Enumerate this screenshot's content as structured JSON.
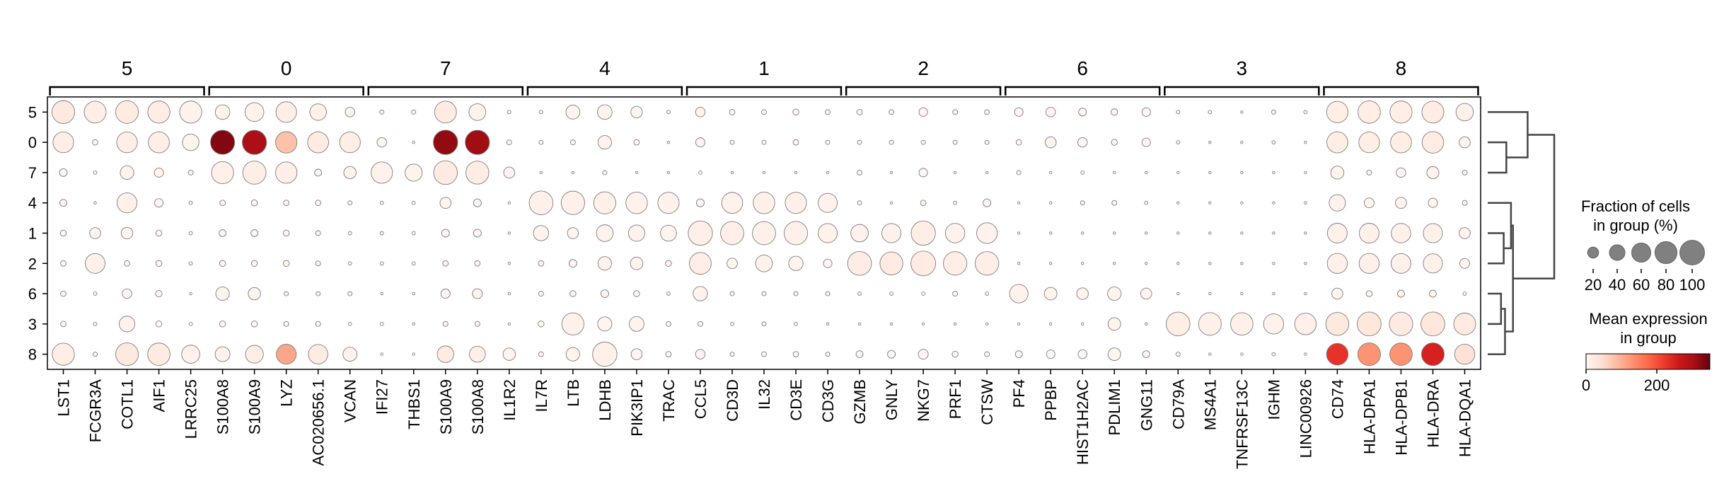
{
  "chart_data": {
    "type": "dotplot",
    "groups_order": [
      "5",
      "0",
      "7",
      "4",
      "1",
      "2",
      "6",
      "3",
      "8"
    ],
    "gene_groups": [
      {
        "label": "5",
        "genes": [
          "LST1",
          "FCGR3A",
          "COTL1",
          "AIF1",
          "LRRC25"
        ]
      },
      {
        "label": "0",
        "genes": [
          "S100A8",
          "S100A9",
          "LYZ",
          "AC020656.1",
          "VCAN"
        ]
      },
      {
        "label": "7",
        "genes": [
          "IFI27",
          "THBS1",
          "S100A9",
          "S100A8",
          "IL1R2"
        ]
      },
      {
        "label": "4",
        "genes": [
          "IL7R",
          "LTB",
          "LDHB",
          "PIK3IP1",
          "TRAC"
        ]
      },
      {
        "label": "1",
        "genes": [
          "CCL5",
          "CD3D",
          "IL32",
          "CD3E",
          "CD3G"
        ]
      },
      {
        "label": "2",
        "genes": [
          "GZMB",
          "GNLY",
          "NKG7",
          "PRF1",
          "CTSW"
        ]
      },
      {
        "label": "6",
        "genes": [
          "PF4",
          "PPBP",
          "HIST1H2AC",
          "PDLIM1",
          "GNG11"
        ]
      },
      {
        "label": "3",
        "genes": [
          "CD79A",
          "MS4A1",
          "TNFRSF13C",
          "IGHM",
          "LINC00926"
        ]
      },
      {
        "label": "8",
        "genes": [
          "CD74",
          "HLA-DPA1",
          "HLA-DPB1",
          "HLA-DRA",
          "HLA-DQA1"
        ]
      }
    ],
    "fraction": [
      [
        85,
        78,
        84,
        80,
        80,
        35,
        58,
        70,
        45,
        15,
        3,
        3,
        78,
        46,
        2,
        2,
        32,
        35,
        22,
        2,
        15,
        5,
        4,
        6,
        4,
        5,
        4,
        12,
        4,
        4,
        12,
        15,
        10,
        7,
        12,
        2,
        2,
        1,
        3,
        2,
        75,
        82,
        80,
        78,
        50
      ],
      [
        70,
        5,
        70,
        72,
        45,
        95,
        96,
        75,
        72,
        70,
        15,
        1,
        97,
        96,
        4,
        3,
        4,
        30,
        5,
        1,
        14,
        3,
        3,
        5,
        3,
        3,
        3,
        3,
        3,
        3,
        5,
        20,
        15,
        6,
        12,
        2,
        1,
        1,
        2,
        1,
        72,
        70,
        72,
        76,
        20
      ],
      [
        10,
        2,
        30,
        14,
        4,
        80,
        88,
        75,
        8,
        25,
        75,
        48,
        92,
        86,
        20,
        1,
        1,
        3,
        1,
        1,
        2,
        1,
        1,
        1,
        1,
        4,
        1,
        12,
        1,
        1,
        3,
        1,
        2,
        1,
        1,
        1,
        1,
        1,
        1,
        1,
        28,
        4,
        15,
        24,
        4
      ],
      [
        8,
        1,
        65,
        12,
        2,
        5,
        6,
        5,
        5,
        3,
        2,
        2,
        20,
        10,
        1,
        92,
        90,
        80,
        76,
        74,
        10,
        72,
        76,
        74,
        60,
        3,
        1,
        5,
        2,
        10,
        1,
        1,
        3,
        4,
        2,
        1,
        1,
        1,
        1,
        1,
        44,
        16,
        20,
        14,
        4
      ],
      [
        6,
        20,
        22,
        6,
        2,
        8,
        8,
        6,
        4,
        2,
        2,
        2,
        10,
        10,
        1,
        38,
        20,
        46,
        44,
        42,
        96,
        88,
        88,
        90,
        60,
        50,
        60,
        96,
        62,
        70,
        1,
        1,
        1,
        1,
        1,
        1,
        1,
        1,
        1,
        1,
        64,
        64,
        62,
        60,
        20
      ],
      [
        5,
        64,
        5,
        6,
        2,
        6,
        6,
        6,
        4,
        2,
        2,
        2,
        5,
        5,
        1,
        5,
        10,
        30,
        26,
        6,
        78,
        18,
        46,
        34,
        12,
        93,
        86,
        100,
        90,
        91,
        1,
        1,
        1,
        1,
        1,
        1,
        1,
        1,
        1,
        1,
        66,
        66,
        64,
        60,
        16
      ],
      [
        5,
        2,
        15,
        7,
        1,
        30,
        25,
        3,
        3,
        3,
        1,
        1,
        14,
        16,
        1,
        4,
        6,
        10,
        6,
        2,
        34,
        3,
        3,
        3,
        3,
        2,
        2,
        2,
        4,
        2,
        56,
        26,
        22,
        30,
        20,
        1,
        1,
        1,
        1,
        1,
        20,
        6,
        8,
        8,
        2
      ],
      [
        5,
        2,
        40,
        6,
        2,
        6,
        6,
        4,
        4,
        2,
        2,
        1,
        4,
        4,
        1,
        6,
        80,
        33,
        36,
        4,
        4,
        2,
        3,
        2,
        1,
        1,
        1,
        1,
        1,
        1,
        1,
        1,
        1,
        26,
        1,
        92,
        84,
        82,
        66,
        76,
        86,
        93,
        90,
        93,
        78
      ],
      [
        80,
        3,
        84,
        82,
        54,
        36,
        52,
        65,
        62,
        32,
        1,
        1,
        45,
        42,
        25,
        4,
        30,
        97,
        20,
        5,
        15,
        3,
        4,
        5,
        3,
        8,
        10,
        16,
        6,
        4,
        8,
        12,
        13,
        26,
        8,
        3,
        1,
        1,
        2,
        1,
        76,
        84,
        82,
        84,
        66
      ]
    ],
    "mean_expression": [
      [
        25,
        15,
        20,
        18,
        8,
        5,
        8,
        15,
        10,
        3,
        1,
        1,
        20,
        8,
        1,
        1,
        5,
        5,
        3,
        1,
        2,
        1,
        1,
        1,
        1,
        1,
        1,
        2,
        1,
        1,
        2,
        2,
        1,
        1,
        2,
        1,
        1,
        1,
        1,
        1,
        15,
        15,
        15,
        18,
        10
      ],
      [
        15,
        1,
        15,
        15,
        5,
        330,
        300,
        80,
        20,
        15,
        2,
        1,
        320,
        310,
        1,
        1,
        1,
        5,
        1,
        1,
        2,
        1,
        1,
        1,
        1,
        1,
        1,
        1,
        1,
        1,
        1,
        3,
        2,
        1,
        2,
        1,
        1,
        1,
        1,
        1,
        15,
        15,
        15,
        18,
        5
      ],
      [
        2,
        1,
        5,
        2,
        1,
        10,
        15,
        12,
        1,
        5,
        8,
        5,
        20,
        18,
        3,
        1,
        1,
        1,
        1,
        1,
        1,
        1,
        1,
        1,
        1,
        1,
        1,
        2,
        1,
        1,
        1,
        1,
        1,
        1,
        1,
        1,
        1,
        1,
        1,
        1,
        5,
        1,
        2,
        5,
        1
      ],
      [
        1,
        1,
        10,
        2,
        1,
        1,
        1,
        1,
        1,
        1,
        1,
        1,
        3,
        2,
        1,
        10,
        10,
        10,
        8,
        6,
        2,
        8,
        10,
        10,
        6,
        1,
        1,
        1,
        1,
        2,
        1,
        1,
        1,
        1,
        1,
        1,
        1,
        1,
        1,
        1,
        8,
        3,
        3,
        3,
        1
      ],
      [
        1,
        2,
        3,
        1,
        1,
        1,
        1,
        1,
        1,
        1,
        1,
        1,
        2,
        2,
        1,
        4,
        3,
        5,
        6,
        5,
        12,
        12,
        10,
        10,
        7,
        6,
        8,
        14,
        8,
        8,
        1,
        1,
        1,
        1,
        1,
        1,
        1,
        1,
        1,
        1,
        10,
        10,
        10,
        10,
        3
      ],
      [
        1,
        10,
        1,
        1,
        1,
        1,
        1,
        1,
        1,
        1,
        1,
        1,
        1,
        1,
        1,
        1,
        1,
        4,
        3,
        1,
        15,
        3,
        6,
        4,
        2,
        18,
        20,
        20,
        14,
        14,
        1,
        1,
        1,
        1,
        1,
        1,
        1,
        1,
        1,
        1,
        10,
        10,
        10,
        10,
        3
      ],
      [
        1,
        1,
        2,
        1,
        1,
        4,
        3,
        1,
        1,
        1,
        1,
        1,
        2,
        3,
        1,
        1,
        1,
        1,
        1,
        1,
        6,
        1,
        1,
        1,
        1,
        1,
        1,
        1,
        1,
        1,
        8,
        5,
        4,
        5,
        3,
        1,
        1,
        1,
        1,
        1,
        3,
        1,
        1,
        1,
        1
      ],
      [
        1,
        1,
        6,
        1,
        1,
        1,
        1,
        1,
        1,
        1,
        1,
        1,
        1,
        1,
        1,
        1,
        8,
        3,
        4,
        1,
        1,
        1,
        1,
        1,
        1,
        1,
        1,
        1,
        1,
        1,
        1,
        1,
        1,
        4,
        1,
        15,
        10,
        10,
        8,
        10,
        25,
        30,
        22,
        28,
        20
      ],
      [
        15,
        1,
        25,
        20,
        8,
        8,
        15,
        110,
        20,
        6,
        1,
        1,
        20,
        12,
        5,
        1,
        5,
        10,
        3,
        1,
        2,
        1,
        1,
        1,
        1,
        1,
        1,
        2,
        1,
        1,
        1,
        1,
        1,
        3,
        1,
        1,
        1,
        1,
        1,
        1,
        230,
        130,
        130,
        250,
        40
      ]
    ],
    "dendrogram": {
      "leaves": [
        "5",
        "0",
        "7",
        "4",
        "1",
        "2",
        "6",
        "3",
        "8"
      ],
      "merges": [
        {
          "left": "0",
          "right": "7",
          "height": 0.28
        },
        {
          "left": "5",
          "right": "0+7",
          "height": 0.6
        },
        {
          "left": "1",
          "right": "2",
          "height": 0.24
        },
        {
          "left": "4",
          "right": "1+2",
          "height": 0.35
        },
        {
          "left": "6",
          "right": "3",
          "height": 0.2
        },
        {
          "left": "6+3",
          "right": "8",
          "height": 0.26
        },
        {
          "left": "4+1+2",
          "right": "6+3+8",
          "height": 0.38
        },
        {
          "left": "5+0+7",
          "right": "4+1+2+6+3+8",
          "height": 1.0
        }
      ]
    },
    "legend_size": {
      "title": "Fraction of cells\nin group (%)",
      "values": [
        20,
        40,
        60,
        80,
        100
      ],
      "tick_labels": [
        "20",
        "40",
        "60",
        "80",
        "100"
      ]
    },
    "legend_color": {
      "title": "Mean expression\nin group",
      "vmin": 0,
      "vmax": 350,
      "ticks": [
        0,
        200
      ],
      "tick_labels": [
        "0",
        "200"
      ],
      "colormap": "Reds",
      "colors": [
        "#fff5f0",
        "#fee0d2",
        "#fcbba1",
        "#fc9272",
        "#fb6a4a",
        "#ef3b2c",
        "#cb181d",
        "#a50f15",
        "#67000d"
      ]
    }
  }
}
